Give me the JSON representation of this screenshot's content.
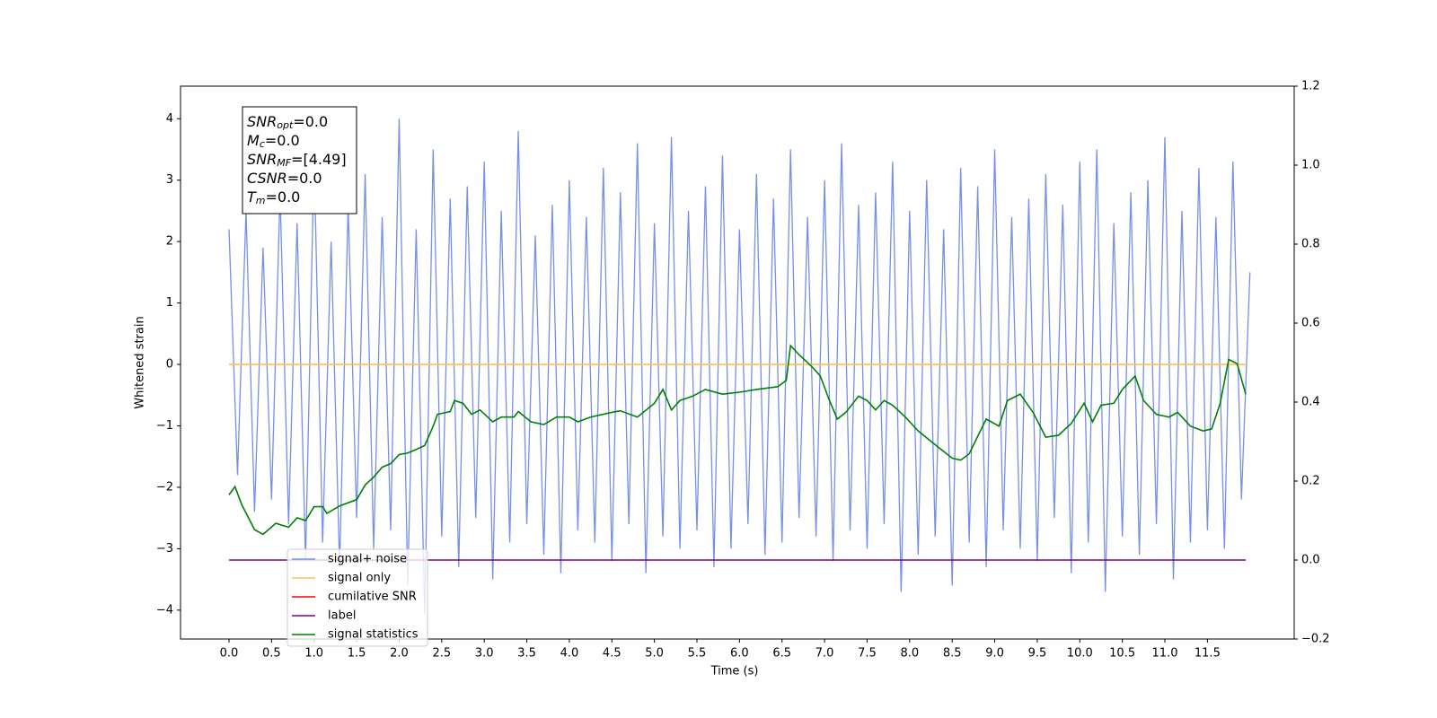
{
  "chart_data": {
    "type": "line",
    "xlabel": "Time (s)",
    "ylabel": "Whitened strain",
    "xlim": [
      -0.57,
      12.52
    ],
    "ylim": [
      -4.47,
      4.53
    ],
    "y2lim": [
      -0.2,
      1.2
    ],
    "xticks": [
      {
        "value": 0,
        "label": "0.0"
      },
      0.5,
      {
        "value": 1,
        "label": "1.0"
      },
      1.5,
      {
        "value": 2,
        "label": "2.0"
      },
      2.5,
      {
        "value": 3,
        "label": "3.0"
      },
      3.5,
      {
        "value": 4,
        "label": "4.0"
      },
      4.5,
      {
        "value": 5,
        "label": "5.0"
      },
      5.5,
      {
        "value": 6,
        "label": "6.0"
      },
      6.5,
      {
        "value": 7,
        "label": "7.0"
      },
      7.5,
      {
        "value": 8,
        "label": "8.0"
      },
      8.5,
      {
        "value": 9,
        "label": "9.0"
      },
      9.5,
      {
        "value": 10,
        "label": "10.0"
      },
      10.5,
      {
        "value": 11,
        "label": "11.0"
      },
      11.5
    ],
    "yticks": [
      {
        "value": -4,
        "label": "−4"
      },
      {
        "value": -3,
        "label": "−3"
      },
      {
        "value": -2,
        "label": "−2"
      },
      {
        "value": -1,
        "label": "−1"
      },
      0,
      1,
      2,
      3,
      4
    ],
    "y2ticks": [
      {
        "value": -0.2,
        "label": "−0.2"
      },
      {
        "value": 0,
        "label": "0.0"
      },
      0.2,
      0.4,
      0.6,
      0.8,
      {
        "value": 1,
        "label": "1.0"
      },
      1.2
    ],
    "legend": "lower left",
    "annotations": [
      {
        "name": "SNR",
        "sub": "opt",
        "text": "=0.0"
      },
      {
        "name": "M",
        "sub": "c",
        "text": "=0.0"
      },
      {
        "name": "SNR",
        "sub": "MF",
        "text": "=[4.49]"
      },
      {
        "name": "CSNR",
        "text": "=0.0"
      },
      {
        "name": "T",
        "sub": "m",
        "text": "=0.0"
      }
    ],
    "series": [
      {
        "name": "signal+ noise",
        "color": "#7690e8",
        "x": [
          0,
          0.1,
          0.2,
          0.3,
          0.4,
          0.5,
          0.6,
          0.7,
          0.8,
          0.9,
          1,
          1.1,
          1.2,
          1.3,
          1.4,
          1.5,
          1.6,
          1.7,
          1.8,
          1.9,
          2,
          2.1,
          2.2,
          2.3,
          2.4,
          2.5,
          2.6,
          2.7,
          2.8,
          2.9,
          3,
          3.1,
          3.2,
          3.3,
          3.4,
          3.5,
          3.6,
          3.7,
          3.8,
          3.9,
          4,
          4.1,
          4.2,
          4.3,
          4.4,
          4.5,
          4.6,
          4.7,
          4.8,
          4.9,
          5,
          5.1,
          5.2,
          5.3,
          5.4,
          5.5,
          5.6,
          5.7,
          5.8,
          5.9,
          6,
          6.1,
          6.2,
          6.3,
          6.4,
          6.5,
          6.6,
          6.7,
          6.8,
          6.9,
          7,
          7.1,
          7.2,
          7.3,
          7.4,
          7.5,
          7.6,
          7.7,
          7.8,
          7.9,
          8,
          8.1,
          8.2,
          8.3,
          8.4,
          8.5,
          8.6,
          8.7,
          8.8,
          8.9,
          9,
          9.1,
          9.2,
          9.3,
          9.4,
          9.5,
          9.6,
          9.7,
          9.8,
          9.9,
          10,
          10.1,
          10.2,
          10.3,
          10.4,
          10.5,
          10.6,
          10.7,
          10.8,
          10.9,
          11,
          11.1,
          11.2,
          11.3,
          11.4,
          11.5,
          11.6,
          11.7,
          11.8,
          11.9,
          12
        ],
        "values": [
          2.2,
          -1.8,
          2.5,
          -2.4,
          1.9,
          -2.2,
          2.8,
          -2.6,
          2.3,
          -3.2,
          3.4,
          -2.9,
          2.0,
          -3.3,
          2.6,
          -2.5,
          3.1,
          -3.0,
          2.4,
          -2.7,
          4.0,
          -3.6,
          2.2,
          -4.06,
          3.5,
          -2.8,
          2.7,
          -3.3,
          2.9,
          -2.5,
          3.3,
          -3.5,
          2.5,
          -2.9,
          3.8,
          -2.6,
          2.1,
          -3.1,
          2.6,
          -3.4,
          3.0,
          -2.7,
          2.4,
          -2.9,
          3.2,
          -3.2,
          2.8,
          -2.6,
          3.6,
          -3.4,
          2.3,
          -2.8,
          3.7,
          -3.0,
          2.5,
          -2.7,
          2.9,
          -3.3,
          3.4,
          -3.0,
          2.2,
          -2.6,
          3.1,
          -3.1,
          2.7,
          -2.9,
          3.5,
          -2.5,
          2.4,
          -2.8,
          3.0,
          -3.2,
          3.6,
          -2.7,
          2.6,
          -3.0,
          2.8,
          -2.6,
          3.3,
          -3.7,
          2.5,
          -3.1,
          3.0,
          -2.8,
          2.2,
          -3.6,
          3.2,
          -2.9,
          2.9,
          -3.3,
          3.5,
          -2.7,
          2.4,
          -3.0,
          2.7,
          -3.2,
          3.1,
          -2.5,
          2.6,
          -3.4,
          3.3,
          -2.9,
          3.5,
          -3.7,
          2.3,
          -2.8,
          2.8,
          -3.1,
          3.0,
          -2.6,
          3.7,
          -3.5,
          2.5,
          -2.9,
          3.2,
          -2.7,
          2.4,
          -3.0,
          3.3,
          -2.2,
          1.5
        ]
      },
      {
        "name": "signal only",
        "color": "#ffc04d",
        "x": [
          0,
          11.95
        ],
        "values": [
          0,
          0
        ]
      },
      {
        "name": "cumilative SNR",
        "color": "#ff0000",
        "x": [],
        "values": []
      },
      {
        "name": "label",
        "color": "#800080",
        "axis": "y2",
        "x": [
          0,
          11.95
        ],
        "values": [
          0,
          0
        ]
      },
      {
        "name": "signal statistics",
        "color": "#008000",
        "axis": "y2",
        "x": [
          0,
          0.07,
          0.15,
          0.3,
          0.4,
          0.55,
          0.7,
          0.8,
          0.9,
          1.0,
          1.1,
          1.15,
          1.3,
          1.5,
          1.6,
          1.7,
          1.8,
          1.9,
          2.0,
          2.1,
          2.2,
          2.3,
          2.4,
          2.45,
          2.6,
          2.65,
          2.75,
          2.85,
          2.95,
          3.1,
          3.2,
          3.35,
          3.4,
          3.55,
          3.7,
          3.85,
          4.0,
          4.1,
          4.25,
          4.5,
          4.6,
          4.8,
          5.0,
          5.1,
          5.2,
          5.3,
          5.45,
          5.6,
          5.8,
          6.0,
          6.2,
          6.45,
          6.55,
          6.6,
          6.7,
          6.85,
          6.95,
          7.05,
          7.15,
          7.25,
          7.4,
          7.5,
          7.6,
          7.7,
          7.8,
          7.95,
          8.1,
          8.3,
          8.5,
          8.6,
          8.7,
          8.9,
          9.05,
          9.15,
          9.3,
          9.45,
          9.6,
          9.75,
          9.9,
          10.05,
          10.15,
          10.25,
          10.4,
          10.5,
          10.65,
          10.75,
          10.9,
          11.05,
          11.15,
          11.3,
          11.45,
          11.55,
          11.65,
          11.75,
          11.85,
          11.95
        ],
        "values": [
          0.165,
          0.186,
          0.14,
          0.077,
          0.065,
          0.093,
          0.083,
          0.107,
          0.1,
          0.135,
          0.135,
          0.118,
          0.137,
          0.153,
          0.19,
          0.21,
          0.235,
          0.244,
          0.267,
          0.271,
          0.28,
          0.29,
          0.339,
          0.369,
          0.376,
          0.404,
          0.397,
          0.369,
          0.38,
          0.35,
          0.362,
          0.362,
          0.376,
          0.35,
          0.343,
          0.362,
          0.362,
          0.35,
          0.362,
          0.374,
          0.378,
          0.362,
          0.397,
          0.432,
          0.38,
          0.404,
          0.415,
          0.432,
          0.42,
          0.425,
          0.432,
          0.439,
          0.455,
          0.543,
          0.52,
          0.49,
          0.466,
          0.408,
          0.357,
          0.374,
          0.415,
          0.404,
          0.38,
          0.404,
          0.392,
          0.362,
          0.327,
          0.292,
          0.258,
          0.253,
          0.269,
          0.357,
          0.339,
          0.404,
          0.42,
          0.374,
          0.311,
          0.316,
          0.346,
          0.397,
          0.35,
          0.392,
          0.397,
          0.432,
          0.466,
          0.404,
          0.369,
          0.362,
          0.374,
          0.339,
          0.327,
          0.332,
          0.397,
          0.508,
          0.497,
          0.42
        ]
      }
    ]
  }
}
